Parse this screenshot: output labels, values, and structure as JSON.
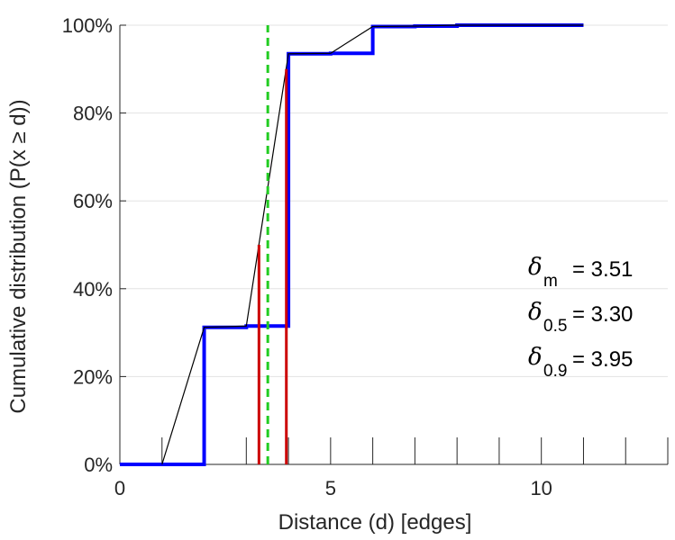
{
  "chart_data": {
    "type": "line",
    "xlabel": "Distance (d) [edges]",
    "ylabel": "Cumulative distribution (P(x ≥ d))",
    "xlim": [
      0,
      13
    ],
    "ylim": [
      0,
      100
    ],
    "x_ticks": [
      0,
      5,
      10
    ],
    "x_tick_labels": [
      "0",
      "5",
      "10"
    ],
    "x_minor_ticks": [
      1,
      2,
      3,
      4,
      6,
      7,
      8,
      9,
      11,
      12,
      13
    ],
    "y_ticks": [
      0,
      20,
      40,
      60,
      80,
      100
    ],
    "y_tick_labels": [
      "0%",
      "20%",
      "40%",
      "60%",
      "80%",
      "100%"
    ],
    "grid": "horizontal",
    "series": [
      {
        "kind": "step",
        "color": "#0000ff",
        "x": [
          0,
          1,
          2,
          3,
          4,
          5,
          6,
          7,
          8,
          9,
          10,
          11
        ],
        "y": [
          0,
          0,
          31.2,
          31.5,
          93.5,
          93.6,
          99.7,
          99.8,
          100,
          100,
          100,
          100
        ]
      },
      {
        "kind": "interpolated",
        "color": "#000000",
        "x": [
          1,
          2,
          3,
          4,
          5,
          6,
          7,
          8,
          9,
          10,
          11
        ],
        "y": [
          0,
          31.2,
          31.5,
          93.5,
          93.6,
          99.7,
          99.8,
          100,
          100,
          100,
          100
        ]
      }
    ],
    "markers": [
      {
        "kind": "vline-dashed",
        "color": "#22cc22",
        "x": 3.51,
        "y_from": 0,
        "y_to": 100
      },
      {
        "kind": "vline",
        "color": "#cc0000",
        "x": 3.3,
        "y_from": 0,
        "y_to": 50
      },
      {
        "kind": "vline",
        "color": "#cc0000",
        "x": 3.95,
        "y_from": 0,
        "y_to": 90
      }
    ],
    "annotations": [
      {
        "symbol": "δ",
        "sub": "m",
        "value": "= 3.51"
      },
      {
        "symbol": "δ",
        "sub": "0.5",
        "value": "= 3.30"
      },
      {
        "symbol": "δ",
        "sub": "0.9",
        "value": "= 3.95"
      }
    ]
  }
}
